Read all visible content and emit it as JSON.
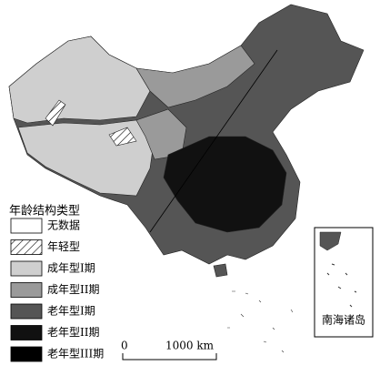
{
  "legend": {
    "title": "年龄结构类型",
    "items": [
      {
        "label": "无数据",
        "color": "#ffffff",
        "hatched": false
      },
      {
        "label": "年轻型",
        "color": "#ffffff",
        "hatched": true
      },
      {
        "label": "成年型I期",
        "color": "#cfcfcf",
        "hatched": false
      },
      {
        "label": "成年型II期",
        "color": "#9a9a9a",
        "hatched": false
      },
      {
        "label": "老年型I期",
        "color": "#555555",
        "hatched": false
      },
      {
        "label": "老年型II期",
        "color": "#111111",
        "hatched": false
      },
      {
        "label": "老年型III期",
        "color": "#000000",
        "hatched": false
      }
    ]
  },
  "scale_bar": {
    "start": "0",
    "end": "1000 km"
  },
  "inset": {
    "label": "南海诸岛"
  }
}
